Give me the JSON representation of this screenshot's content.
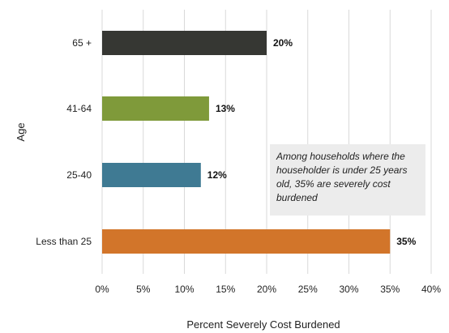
{
  "chart_data": {
    "type": "bar",
    "orientation": "horizontal",
    "categories": [
      "65 +",
      "41-64",
      "25-40",
      "Less than 25"
    ],
    "values": [
      20,
      13,
      12,
      35
    ],
    "value_labels": [
      "20%",
      "13%",
      "12%",
      "35%"
    ],
    "colors": [
      "#363733",
      "#7f9a3a",
      "#3f7a93",
      "#d2752a"
    ],
    "xlabel": "Percent Severely Cost Burdened",
    "ylabel": "Age",
    "xlim": [
      0,
      40
    ],
    "xticks": [
      0,
      5,
      10,
      15,
      20,
      25,
      30,
      35,
      40
    ],
    "xtick_labels": [
      "0%",
      "5%",
      "10%",
      "15%",
      "20%",
      "25%",
      "30%",
      "35%",
      "40%"
    ],
    "grid": "vertical",
    "annotation": "Among households where the householder is under 25 years old, 35% are severely cost burdened"
  }
}
